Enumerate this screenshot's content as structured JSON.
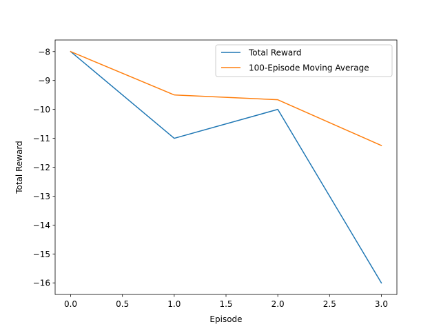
{
  "chart_data": {
    "type": "line",
    "xlabel": "Episode",
    "ylabel": "Total Reward",
    "xlim": [
      -0.15,
      3.15
    ],
    "ylim": [
      -16.4,
      -7.6
    ],
    "xticks": [
      0.0,
      0.5,
      1.0,
      1.5,
      2.0,
      2.5,
      3.0
    ],
    "xtick_labels": [
      "0.0",
      "0.5",
      "1.0",
      "1.5",
      "2.0",
      "2.5",
      "3.0"
    ],
    "yticks": [
      -8,
      -9,
      -10,
      -11,
      -12,
      -13,
      -14,
      -15,
      -16
    ],
    "ytick_labels": [
      "−8",
      "−9",
      "−10",
      "−11",
      "−12",
      "−13",
      "−14",
      "−15",
      "−16"
    ],
    "grid": false,
    "legend_position": "top-right",
    "series": [
      {
        "name": "Total Reward",
        "color": "#1f77b4",
        "x": [
          0,
          1,
          2,
          3
        ],
        "y": [
          -8,
          -11,
          -10,
          -16
        ]
      },
      {
        "name": "100-Episode Moving Average",
        "color": "#ff7f0e",
        "x": [
          0,
          1,
          2,
          3
        ],
        "y": [
          -8,
          -9.5,
          -9.667,
          -11.25
        ]
      }
    ]
  }
}
